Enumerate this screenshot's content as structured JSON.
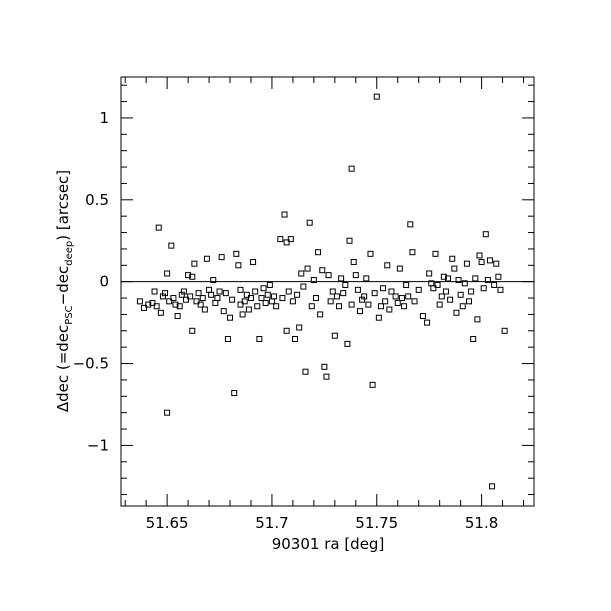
{
  "chart_data": {
    "type": "scatter",
    "title": "",
    "xlabel": "90301 ra [deg]",
    "ylabel": {
      "prefix": "Δdec (=dec",
      "sub1": "PSC",
      "mid": "−dec",
      "sub2": "deep",
      "suffix": ") [arcsec]"
    },
    "xlim": [
      51.628,
      51.825
    ],
    "ylim": [
      -1.37,
      1.25
    ],
    "x_ticks": [
      51.65,
      51.7,
      51.75,
      51.8
    ],
    "x_tick_labels": [
      "51.65",
      "51.7",
      "51.75",
      "51.8"
    ],
    "y_ticks": [
      -1,
      -0.5,
      0,
      0.5,
      1
    ],
    "y_tick_labels": [
      "−1",
      "−0.5",
      "0",
      "0.5",
      "1"
    ],
    "x_minor_step": 0.01,
    "y_minor_step": 0.1,
    "reference_line_y": 0,
    "grid": false,
    "marker": "open-square",
    "points": [
      [
        51.637,
        -0.12
      ],
      [
        51.639,
        -0.16
      ],
      [
        51.641,
        -0.14
      ],
      [
        51.643,
        -0.13
      ],
      [
        51.644,
        -0.06
      ],
      [
        51.645,
        -0.15
      ],
      [
        51.646,
        0.33
      ],
      [
        51.647,
        -0.19
      ],
      [
        51.648,
        -0.09
      ],
      [
        51.649,
        -0.07
      ],
      [
        51.65,
        -0.8
      ],
      [
        51.65,
        0.05
      ],
      [
        51.651,
        -0.12
      ],
      [
        51.652,
        0.22
      ],
      [
        51.653,
        -0.1
      ],
      [
        51.654,
        -0.14
      ],
      [
        51.655,
        -0.21
      ],
      [
        51.656,
        -0.15
      ],
      [
        51.657,
        -0.08
      ],
      [
        51.658,
        -0.06
      ],
      [
        51.659,
        -0.11
      ],
      [
        51.66,
        0.04
      ],
      [
        51.661,
        -0.09
      ],
      [
        51.662,
        -0.3
      ],
      [
        51.662,
        0.03
      ],
      [
        51.663,
        0.11
      ],
      [
        51.664,
        -0.12
      ],
      [
        51.665,
        -0.07
      ],
      [
        51.666,
        -0.14
      ],
      [
        51.667,
        -0.1
      ],
      [
        51.668,
        -0.17
      ],
      [
        51.669,
        0.14
      ],
      [
        51.67,
        -0.05
      ],
      [
        51.671,
        -0.08
      ],
      [
        51.672,
        0.01
      ],
      [
        51.673,
        -0.13
      ],
      [
        51.674,
        -0.1
      ],
      [
        51.675,
        -0.06
      ],
      [
        51.676,
        0.15
      ],
      [
        51.677,
        -0.18
      ],
      [
        51.678,
        -0.07
      ],
      [
        51.679,
        -0.35
      ],
      [
        51.68,
        -0.22
      ],
      [
        51.681,
        -0.11
      ],
      [
        51.682,
        -0.68
      ],
      [
        51.683,
        0.17
      ],
      [
        51.684,
        0.1
      ],
      [
        51.685,
        -0.14
      ],
      [
        51.685,
        -0.05
      ],
      [
        51.686,
        -0.2
      ],
      [
        51.687,
        -0.12
      ],
      [
        51.688,
        -0.08
      ],
      [
        51.689,
        -0.17
      ],
      [
        51.69,
        -0.1
      ],
      [
        51.691,
        0.12
      ],
      [
        51.692,
        -0.06
      ],
      [
        51.693,
        -0.15
      ],
      [
        51.694,
        -0.35
      ],
      [
        51.695,
        -0.1
      ],
      [
        51.696,
        -0.04
      ],
      [
        51.697,
        -0.13
      ],
      [
        51.698,
        -0.08
      ],
      [
        51.699,
        -0.02
      ],
      [
        51.7,
        -0.12
      ],
      [
        51.701,
        -0.09
      ],
      [
        51.702,
        -0.15
      ],
      [
        51.704,
        0.26
      ],
      [
        51.705,
        -0.1
      ],
      [
        51.706,
        0.41
      ],
      [
        51.707,
        0.24
      ],
      [
        51.707,
        -0.3
      ],
      [
        51.708,
        -0.06
      ],
      [
        51.709,
        0.26
      ],
      [
        51.71,
        -0.12
      ],
      [
        51.711,
        -0.35
      ],
      [
        51.712,
        -0.08
      ],
      [
        51.713,
        -0.28
      ],
      [
        51.714,
        0.05
      ],
      [
        51.715,
        -0.03
      ],
      [
        51.716,
        -0.55
      ],
      [
        51.717,
        0.08
      ],
      [
        51.718,
        0.36
      ],
      [
        51.719,
        -0.15
      ],
      [
        51.72,
        0.01
      ],
      [
        51.721,
        -0.1
      ],
      [
        51.722,
        0.18
      ],
      [
        51.723,
        -0.2
      ],
      [
        51.724,
        0.07
      ],
      [
        51.725,
        -0.52
      ],
      [
        51.726,
        -0.58
      ],
      [
        51.727,
        0.04
      ],
      [
        51.728,
        -0.12
      ],
      [
        51.729,
        -0.06
      ],
      [
        51.73,
        -0.33
      ],
      [
        51.731,
        -0.09
      ],
      [
        51.732,
        -0.15
      ],
      [
        51.733,
        0.02
      ],
      [
        51.734,
        -0.07
      ],
      [
        51.735,
        -0.02
      ],
      [
        51.736,
        -0.38
      ],
      [
        51.737,
        0.25
      ],
      [
        51.738,
        0.69
      ],
      [
        51.738,
        -0.14
      ],
      [
        51.739,
        0.12
      ],
      [
        51.74,
        0.04
      ],
      [
        51.741,
        -0.05
      ],
      [
        51.742,
        -0.18
      ],
      [
        51.743,
        -0.11
      ],
      [
        51.744,
        -0.09
      ],
      [
        51.745,
        0.02
      ],
      [
        51.746,
        -0.14
      ],
      [
        51.747,
        0.17
      ],
      [
        51.748,
        -0.63
      ],
      [
        51.749,
        -0.07
      ],
      [
        51.75,
        1.13
      ],
      [
        51.751,
        -0.22
      ],
      [
        51.752,
        -0.15
      ],
      [
        51.753,
        -0.04
      ],
      [
        51.754,
        -0.12
      ],
      [
        51.755,
        0.1
      ],
      [
        51.756,
        -0.17
      ],
      [
        51.757,
        -0.06
      ],
      [
        51.759,
        -0.09
      ],
      [
        51.76,
        -0.13
      ],
      [
        51.761,
        0.08
      ],
      [
        51.762,
        -0.1
      ],
      [
        51.763,
        -0.15
      ],
      [
        51.764,
        -0.02
      ],
      [
        51.765,
        -0.09
      ],
      [
        51.766,
        0.35
      ],
      [
        51.767,
        0.18
      ],
      [
        51.768,
        -0.12
      ],
      [
        51.77,
        -0.05
      ],
      [
        51.772,
        -0.21
      ],
      [
        51.774,
        -0.25
      ],
      [
        51.775,
        0.05
      ],
      [
        51.776,
        -0.01
      ],
      [
        51.777,
        -0.04
      ],
      [
        51.778,
        0.17
      ],
      [
        51.779,
        -0.02
      ],
      [
        51.78,
        -0.14
      ],
      [
        51.781,
        -0.09
      ],
      [
        51.782,
        0.03
      ],
      [
        51.783,
        -0.06
      ],
      [
        51.784,
        0.02
      ],
      [
        51.785,
        -0.11
      ],
      [
        51.786,
        0.14
      ],
      [
        51.787,
        0.08
      ],
      [
        51.788,
        -0.19
      ],
      [
        51.789,
        0.01
      ],
      [
        51.79,
        -0.08
      ],
      [
        51.791,
        -0.15
      ],
      [
        51.792,
        -0.01
      ],
      [
        51.793,
        0.11
      ],
      [
        51.794,
        -0.12
      ],
      [
        51.795,
        -0.06
      ],
      [
        51.796,
        -0.35
      ],
      [
        51.797,
        0.02
      ],
      [
        51.798,
        -0.23
      ],
      [
        51.799,
        0.16
      ],
      [
        51.8,
        0.12
      ],
      [
        51.801,
        -0.04
      ],
      [
        51.802,
        0.29
      ],
      [
        51.803,
        0.01
      ],
      [
        51.804,
        0.13
      ],
      [
        51.805,
        -1.25
      ],
      [
        51.806,
        -0.02
      ],
      [
        51.807,
        0.11
      ],
      [
        51.808,
        0.03
      ],
      [
        51.809,
        -0.05
      ],
      [
        51.811,
        -0.3
      ]
    ]
  }
}
